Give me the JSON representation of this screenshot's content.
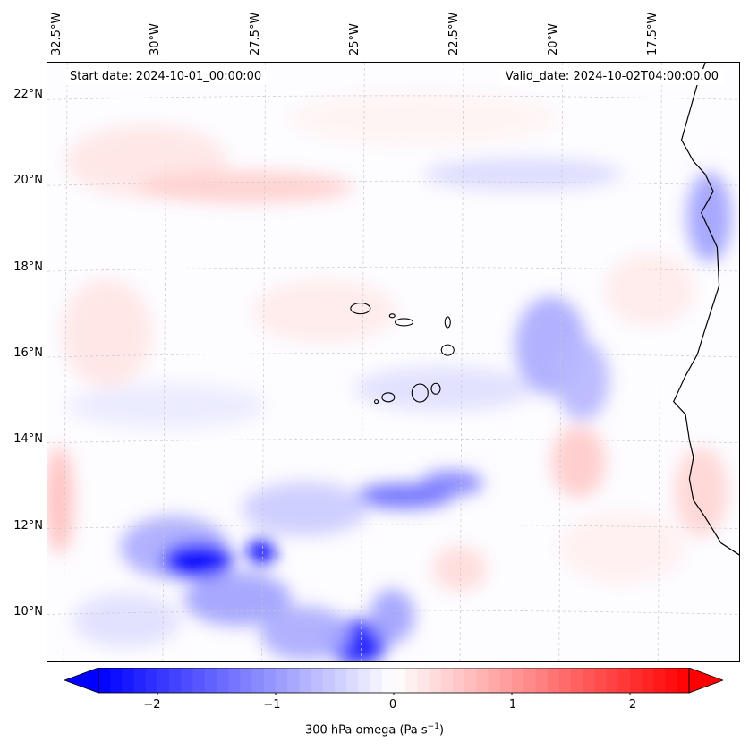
{
  "header": {
    "start_date": "Start date: 2024-10-01_00:00:00",
    "valid_date": "Valid_date: 2024-10-02T04:00:00.00"
  },
  "map": {
    "lon_labels": [
      "32.5°W",
      "30°W",
      "27.5°W",
      "25°W",
      "22.5°W",
      "20°W",
      "17.5°W"
    ],
    "lat_labels": [
      "22°N",
      "20°N",
      "18°N",
      "16°N",
      "14°N",
      "12°N",
      "10°N"
    ],
    "lon_range": [
      -33.0,
      -15.5
    ],
    "lat_range": [
      8.8,
      22.8
    ],
    "gridlines": true,
    "coastline_color": "#000000"
  },
  "colorbar": {
    "ticks": [
      "−2",
      "−1",
      "0",
      "1",
      "2"
    ],
    "range": [
      -2.5,
      2.5
    ],
    "extend": "both",
    "colormap": "bwr",
    "label_main": "300 hPa omega (Pa s",
    "label_sup": "−1",
    "label_end": ")"
  },
  "field_features": [
    {
      "name": "strong-ascent-core-west",
      "lon": -29.2,
      "lat": 11.2,
      "omega": -2.4
    },
    {
      "name": "strong-ascent-core-south",
      "lon": -25.2,
      "lat": 9.2,
      "omega": -2.3
    },
    {
      "name": "ascent-band-central",
      "lon": -23.8,
      "lat": 12.6,
      "omega": -1.4
    },
    {
      "name": "ascent-coastal",
      "lon": -16.2,
      "lat": 19.0,
      "omega": -0.8
    },
    {
      "name": "ascent-streak-east",
      "lon": -20.5,
      "lat": 16.0,
      "omega": -0.8
    },
    {
      "name": "descent-north-band",
      "lon": -27.0,
      "lat": 19.8,
      "omega": 0.5
    },
    {
      "name": "descent-west-edge",
      "lon": -32.8,
      "lat": 12.5,
      "omega": 0.6
    },
    {
      "name": "descent-east",
      "lon": -19.8,
      "lat": 13.6,
      "omega": 0.5
    }
  ]
}
